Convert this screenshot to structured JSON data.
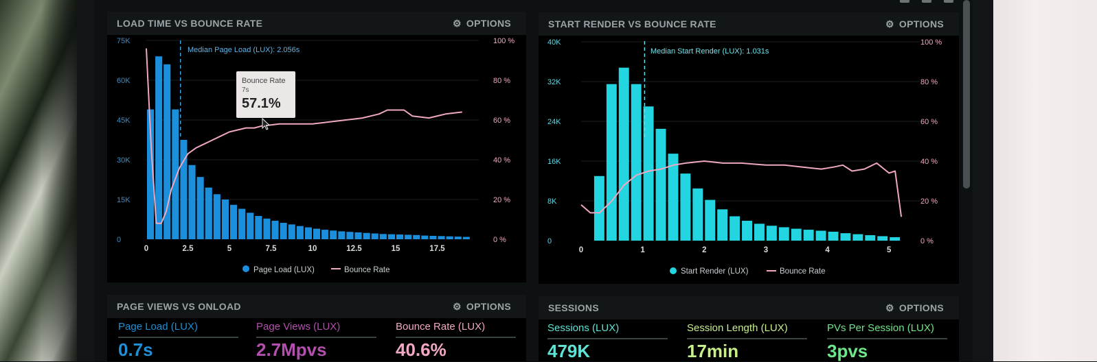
{
  "panels": {
    "load_time": {
      "title": "LOAD TIME VS BOUNCE RATE",
      "options_label": "OPTIONS",
      "median_label": "Median Page Load (LUX): 2.056s",
      "tooltip": {
        "title": "Bounce Rate",
        "x": "7s",
        "value": "57.1%"
      },
      "legend": {
        "bars": "Page Load (LUX)",
        "line": "Bounce Rate"
      }
    },
    "start_render": {
      "title": "START RENDER VS BOUNCE RATE",
      "options_label": "OPTIONS",
      "median_label": "Median Start Render (LUX): 1.031s",
      "legend": {
        "bars": "Start Render (LUX)",
        "line": "Bounce Rate"
      }
    },
    "page_views": {
      "title": "PAGE VIEWS VS ONLOAD",
      "options_label": "OPTIONS",
      "metrics": [
        {
          "label": "Page Load (LUX)",
          "value": "0.7s",
          "color": "#1f8fd6"
        },
        {
          "label": "Page Views (LUX)",
          "value": "2.7Mpvs",
          "color": "#b34fae"
        },
        {
          "label": "Bounce Rate (LUX)",
          "value": "40.6%",
          "color": "#f2a7c4"
        }
      ]
    },
    "sessions": {
      "title": "SESSIONS",
      "options_label": "OPTIONS",
      "metrics": [
        {
          "label": "Sessions (LUX)",
          "value": "479K",
          "color": "#5fe3d6"
        },
        {
          "label": "Session Length (LUX)",
          "value": "17min",
          "color": "#c7f08a"
        },
        {
          "label": "PVs Per Session (LUX)",
          "value": "3pvs",
          "color": "#6fe58a"
        }
      ]
    }
  },
  "chart_data": [
    {
      "type": "bar",
      "title": "LOAD TIME VS BOUNCE RATE",
      "x_ticks": [
        "0",
        "2.5",
        "5",
        "7.5",
        "10",
        "12.5",
        "15",
        "17.5"
      ],
      "y_left_ticks": [
        "0",
        "15K",
        "30K",
        "45K",
        "60K",
        "75K"
      ],
      "y_right_ticks": [
        "0 %",
        "20 %",
        "40 %",
        "60 %",
        "80 %",
        "100 %"
      ],
      "xlim": [
        0,
        20
      ],
      "ylim_left": [
        0,
        75000
      ],
      "ylim_right": [
        0,
        100
      ],
      "median": 2.056,
      "bar_color": "#1b8fdb",
      "line_color": "#f0a8c0",
      "series": [
        {
          "name": "Page Load (LUX)",
          "x": [
            0,
            0.5,
            1,
            1.5,
            2,
            2.5,
            3,
            3.5,
            4,
            4.5,
            5,
            5.5,
            6,
            6.5,
            7,
            7.5,
            8,
            8.5,
            9,
            9.5,
            10,
            10.5,
            11,
            11.5,
            12,
            12.5,
            13,
            13.5,
            14,
            14.5,
            15,
            15.5,
            16,
            16.5,
            17,
            17.5,
            18,
            18.5,
            19
          ],
          "values": [
            49000,
            69000,
            66000,
            49000,
            37500,
            28000,
            23500,
            19500,
            17000,
            15000,
            13000,
            11500,
            10000,
            8800,
            7800,
            7000,
            6200,
            5600,
            5000,
            4500,
            4000,
            3600,
            3300,
            3000,
            2800,
            2600,
            2400,
            2200,
            2000,
            1900,
            1800,
            1700,
            1600,
            1400,
            1300,
            1200,
            1100,
            1000,
            900
          ]
        },
        {
          "name": "Bounce Rate",
          "x": [
            0,
            0.3,
            0.6,
            0.9,
            1.2,
            1.5,
            2,
            2.5,
            3,
            3.5,
            4,
            4.5,
            5,
            5.5,
            6,
            6.5,
            7,
            7.5,
            8,
            9,
            10,
            11,
            12,
            13,
            14,
            14.5,
            15,
            15.5,
            16,
            17,
            18,
            19
          ],
          "values": [
            96,
            45,
            8,
            8,
            14,
            25,
            36,
            43,
            46,
            48,
            50,
            52,
            54,
            55,
            56,
            56,
            57.1,
            57.5,
            58,
            58,
            58,
            59,
            60,
            61,
            63,
            65,
            65,
            65,
            62,
            61,
            63,
            64
          ]
        }
      ]
    },
    {
      "type": "bar",
      "title": "START RENDER VS BOUNCE RATE",
      "x_ticks": [
        "0",
        "1",
        "2",
        "3",
        "4",
        "5"
      ],
      "y_left_ticks": [
        "0",
        "8K",
        "16K",
        "24K",
        "32K",
        "40K"
      ],
      "y_right_ticks": [
        "0 %",
        "20 %",
        "40 %",
        "60 %",
        "80 %",
        "100 %"
      ],
      "xlim": [
        0,
        5.5
      ],
      "ylim_left": [
        0,
        40000
      ],
      "ylim_right": [
        0,
        100
      ],
      "median": 1.031,
      "bar_color": "#22d5e0",
      "line_color": "#f0a8c0",
      "series": [
        {
          "name": "Start Render (LUX)",
          "x": [
            0.2,
            0.4,
            0.6,
            0.8,
            1.0,
            1.2,
            1.4,
            1.6,
            1.8,
            2.0,
            2.2,
            2.4,
            2.6,
            2.8,
            3.0,
            3.2,
            3.4,
            3.6,
            3.8,
            4.0,
            4.2,
            4.4,
            4.6,
            4.8,
            5.0
          ],
          "values": [
            13000,
            31500,
            34800,
            31500,
            27000,
            22500,
            17500,
            13500,
            10500,
            8200,
            6300,
            4900,
            4000,
            3400,
            3000,
            2700,
            2400,
            2200,
            2000,
            1800,
            1500,
            1300,
            1100,
            900,
            700
          ]
        },
        {
          "name": "Bounce Rate",
          "x": [
            0,
            0.15,
            0.3,
            0.5,
            0.7,
            0.9,
            1.1,
            1.3,
            1.5,
            1.7,
            2,
            2.3,
            2.6,
            3,
            3.3,
            3.6,
            3.9,
            4.1,
            4.25,
            4.4,
            4.6,
            4.8,
            5,
            5.1,
            5.2
          ],
          "values": [
            18,
            14,
            14,
            20,
            28,
            33,
            35,
            36,
            38,
            39,
            40,
            39,
            39,
            38,
            38,
            37,
            36,
            37,
            38,
            35,
            36,
            39,
            34,
            35,
            12
          ]
        }
      ]
    }
  ]
}
